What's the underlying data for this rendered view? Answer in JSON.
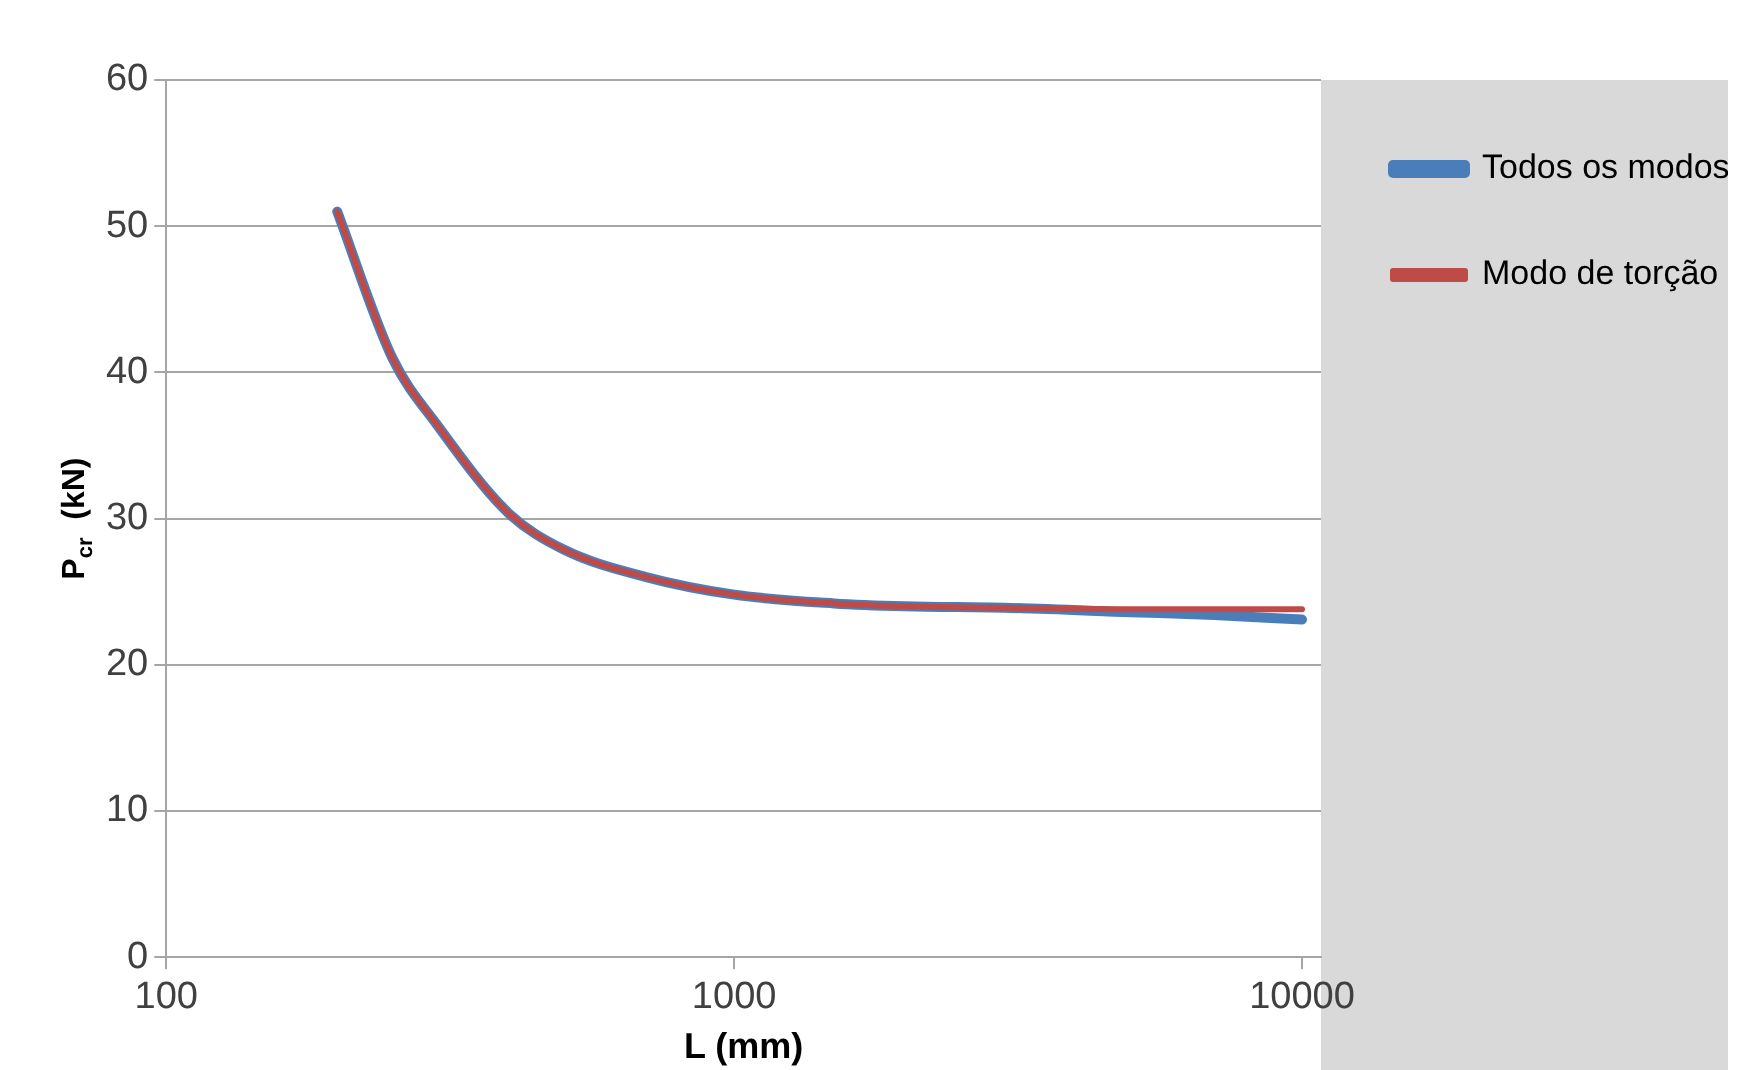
{
  "chart_data": {
    "type": "line",
    "xlabel": "L (mm)",
    "ylabel": "P$_{cr}$  (kN)",
    "log": "x",
    "xlim": [
      100,
      10800
    ],
    "xticks": [
      100,
      1000,
      10000
    ],
    "ylim": [
      0,
      60
    ],
    "yticks": [
      0,
      10,
      20,
      30,
      40,
      50,
      60
    ],
    "grid": "y",
    "legend": "top right",
    "marker": "none",
    "line_style": "solid",
    "series": [
      {
        "name": "Todos os modos",
        "color": "#4a7ebb",
        "x": [
          200,
          250,
          300,
          400,
          500,
          700,
          1000,
          1500,
          2000,
          3000,
          5000,
          7000,
          10000
        ],
        "values": [
          51,
          41,
          36.4,
          30.4,
          27.9,
          26,
          24.8,
          24.2,
          24,
          23.9,
          23.6,
          23.4,
          23.1
        ]
      },
      {
        "name": "Modo de torção",
        "color": "#be4b48",
        "x": [
          200,
          250,
          300,
          400,
          500,
          700,
          1000,
          1500,
          2000,
          3000,
          5000,
          7000,
          10000
        ],
        "values": [
          51,
          41,
          36.4,
          30.4,
          27.9,
          26,
          24.8,
          24.2,
          24,
          23.9,
          23.8,
          23.8,
          23.8
        ]
      }
    ]
  }
}
